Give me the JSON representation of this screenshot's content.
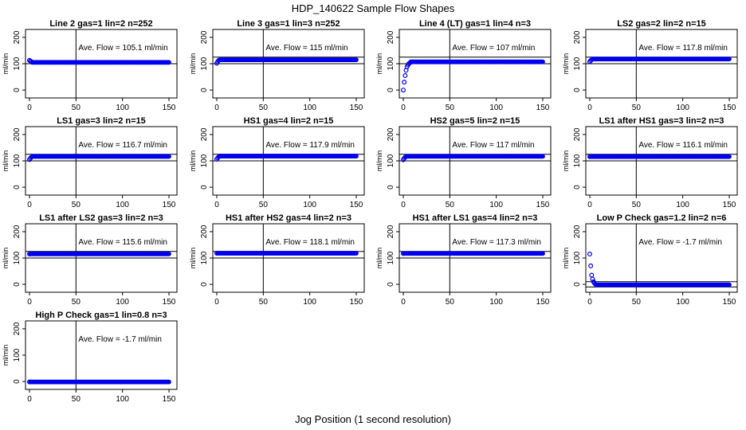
{
  "figure": {
    "title": "HDP_140622  Sample Flow Shapes",
    "xlabel": "Jog Position (1 second resolution)"
  },
  "chart_data": [
    {
      "type": "scatter",
      "title": "Line 2 gas=1 lin=2 n=252",
      "ylabel": "ml/min",
      "annotation": "Ave. Flow = 105.1  ml/min",
      "ave_flow": 105.1,
      "xlim": [
        0,
        150
      ],
      "ylim": [
        -30,
        230
      ],
      "yticks": [
        0,
        100,
        200
      ],
      "xticks": [
        0,
        50,
        100,
        150
      ],
      "hlines": [
        100
      ],
      "vline": 50,
      "start_points": [
        [
          0,
          113
        ],
        [
          1,
          110
        ],
        [
          2,
          108
        ]
      ],
      "plateau": 105.1
    },
    {
      "type": "scatter",
      "title": "Line 3 gas=1 lin=3 n=252",
      "ylabel": "ml/min",
      "annotation": "Ave. Flow =  115  ml/min",
      "ave_flow": 115,
      "xlim": [
        0,
        150
      ],
      "ylim": [
        -30,
        230
      ],
      "yticks": [
        0,
        100,
        200
      ],
      "xticks": [
        0,
        50,
        100,
        150
      ],
      "hlines": [
        100,
        125
      ],
      "vline": 50,
      "start_points": [
        [
          0,
          102
        ],
        [
          1,
          108
        ],
        [
          2,
          112
        ]
      ],
      "plateau": 115
    },
    {
      "type": "scatter",
      "title": "Line 4 (LT) gas=1 lin=4 n=3",
      "ylabel": "ml/min",
      "annotation": "Ave. Flow =  107  ml/min",
      "ave_flow": 107,
      "xlim": [
        0,
        150
      ],
      "ylim": [
        -30,
        230
      ],
      "yticks": [
        0,
        100,
        200
      ],
      "xticks": [
        0,
        50,
        100,
        150
      ],
      "hlines": [
        100,
        125
      ],
      "vline": 50,
      "start_points": [
        [
          0,
          0
        ],
        [
          1,
          30
        ],
        [
          2,
          55
        ],
        [
          3,
          75
        ],
        [
          4,
          88
        ],
        [
          5,
          95
        ],
        [
          6,
          100
        ],
        [
          7,
          103
        ]
      ],
      "plateau": 107
    },
    {
      "type": "scatter",
      "title": "LS2 gas=2 lin=2 n=15",
      "ylabel": "ml/min",
      "annotation": "Ave. Flow = 117.8  ml/min",
      "ave_flow": 117.8,
      "xlim": [
        0,
        150
      ],
      "ylim": [
        -30,
        230
      ],
      "yticks": [
        0,
        100,
        200
      ],
      "xticks": [
        0,
        50,
        100,
        150
      ],
      "hlines": [
        100,
        125
      ],
      "vline": 50,
      "start_points": [
        [
          0,
          108
        ],
        [
          1,
          112
        ],
        [
          2,
          115
        ]
      ],
      "plateau": 117.8
    },
    {
      "type": "scatter",
      "title": "LS1 gas=3 lin=2 n=15",
      "ylabel": "ml/min",
      "annotation": "Ave. Flow = 116.7  ml/min",
      "ave_flow": 116.7,
      "xlim": [
        0,
        150
      ],
      "ylim": [
        -30,
        230
      ],
      "yticks": [
        0,
        100,
        200
      ],
      "xticks": [
        0,
        50,
        100,
        150
      ],
      "hlines": [
        100,
        125
      ],
      "vline": 50,
      "start_points": [
        [
          0,
          105
        ],
        [
          1,
          110
        ],
        [
          2,
          114
        ]
      ],
      "plateau": 116.7
    },
    {
      "type": "scatter",
      "title": "HS1 gas=4 lin=2 n=15",
      "ylabel": "ml/min",
      "annotation": "Ave. Flow = 117.9  ml/min",
      "ave_flow": 117.9,
      "xlim": [
        0,
        150
      ],
      "ylim": [
        -30,
        230
      ],
      "yticks": [
        0,
        100,
        200
      ],
      "xticks": [
        0,
        50,
        100,
        150
      ],
      "hlines": [
        100,
        125
      ],
      "vline": 50,
      "start_points": [
        [
          0,
          106
        ],
        [
          1,
          111
        ],
        [
          2,
          115
        ]
      ],
      "plateau": 117.9
    },
    {
      "type": "scatter",
      "title": "HS2 gas=5 lin=2 n=15",
      "ylabel": "ml/min",
      "annotation": "Ave. Flow =  117  ml/min",
      "ave_flow": 117,
      "xlim": [
        0,
        150
      ],
      "ylim": [
        -30,
        230
      ],
      "yticks": [
        0,
        100,
        200
      ],
      "xticks": [
        0,
        50,
        100,
        150
      ],
      "hlines": [
        100,
        125
      ],
      "vline": 50,
      "start_points": [
        [
          0,
          104
        ],
        [
          1,
          110
        ],
        [
          2,
          114
        ]
      ],
      "plateau": 117
    },
    {
      "type": "scatter",
      "title": "LS1 after HS1 gas=3 lin=2 n=3",
      "ylabel": "ml/min",
      "annotation": "Ave. Flow = 116.1  ml/min",
      "ave_flow": 116.1,
      "xlim": [
        0,
        150
      ],
      "ylim": [
        -30,
        230
      ],
      "yticks": [
        0,
        100,
        200
      ],
      "xticks": [
        0,
        50,
        100,
        150
      ],
      "hlines": [
        100,
        125
      ],
      "vline": 50,
      "start_points": [
        [
          0,
          116
        ]
      ],
      "plateau": 116.1
    },
    {
      "type": "scatter",
      "title": "LS1 after LS2 gas=3 lin=2 n=3",
      "ylabel": "ml/min",
      "annotation": "Ave. Flow = 115.6  ml/min",
      "ave_flow": 115.6,
      "xlim": [
        0,
        150
      ],
      "ylim": [
        -30,
        230
      ],
      "yticks": [
        0,
        100,
        200
      ],
      "xticks": [
        0,
        50,
        100,
        150
      ],
      "hlines": [
        100,
        125
      ],
      "vline": 50,
      "start_points": [
        [
          0,
          115
        ]
      ],
      "plateau": 115.6
    },
    {
      "type": "scatter",
      "title": "HS1 after HS2 gas=4 lin=2 n=3",
      "ylabel": "ml/min",
      "annotation": "Ave. Flow = 118.1  ml/min",
      "ave_flow": 118.1,
      "xlim": [
        0,
        150
      ],
      "ylim": [
        -30,
        230
      ],
      "yticks": [
        0,
        100,
        200
      ],
      "xticks": [
        0,
        50,
        100,
        150
      ],
      "hlines": [
        100,
        125
      ],
      "vline": 50,
      "start_points": [
        [
          0,
          118
        ]
      ],
      "plateau": 118.1
    },
    {
      "type": "scatter",
      "title": "HS1 after LS1 gas=4 lin=2 n=3",
      "ylabel": "ml/min",
      "annotation": "Ave. Flow = 117.3  ml/min",
      "ave_flow": 117.3,
      "xlim": [
        0,
        150
      ],
      "ylim": [
        -30,
        230
      ],
      "yticks": [
        0,
        100,
        200
      ],
      "xticks": [
        0,
        50,
        100,
        150
      ],
      "hlines": [
        100,
        125
      ],
      "vline": 50,
      "start_points": [
        [
          0,
          117
        ]
      ],
      "plateau": 117.3
    },
    {
      "type": "scatter",
      "title": "Low P Check gas=1.2 lin=2 n=6",
      "ylabel": "ml/min",
      "annotation": "Ave. Flow =  -1.7  ml/min",
      "ave_flow": -1.7,
      "xlim": [
        0,
        150
      ],
      "ylim": [
        -30,
        230
      ],
      "yticks": [
        0,
        100,
        200
      ],
      "xticks": [
        0,
        50,
        100,
        150
      ],
      "hlines": [
        -10,
        10
      ],
      "vline": 50,
      "start_points": [
        [
          0,
          115
        ],
        [
          1,
          70
        ],
        [
          2,
          35
        ],
        [
          3,
          20
        ],
        [
          4,
          10
        ],
        [
          5,
          5
        ],
        [
          6,
          1
        ]
      ],
      "plateau": -1.7
    },
    {
      "type": "scatter",
      "title": "High P Check gas=1 lin=0.8 n=3",
      "ylabel": "ml/min",
      "annotation": "Ave. Flow =  -1.7  ml/min",
      "ave_flow": -1.7,
      "xlim": [
        0,
        150
      ],
      "ylim": [
        -30,
        230
      ],
      "yticks": [
        0,
        100,
        200
      ],
      "xticks": [
        0,
        50,
        100,
        150
      ],
      "hlines": [],
      "vline": 50,
      "start_points": [
        [
          0,
          -1.7
        ]
      ],
      "plateau": -1.7
    }
  ],
  "colors": {
    "points": "#0000ee",
    "axes": "#000000"
  }
}
